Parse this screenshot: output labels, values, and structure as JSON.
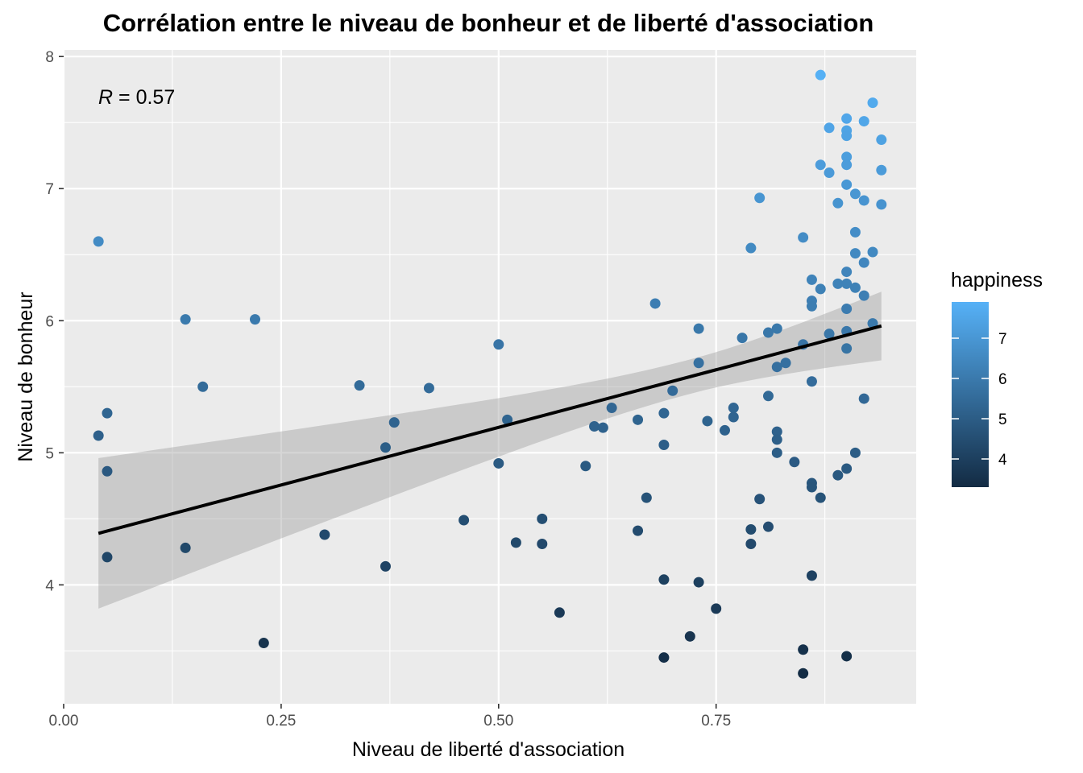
{
  "chart_data": {
    "type": "scatter",
    "title": "Corrélation entre le niveau de bonheur et de liberté d'association",
    "xlabel": "Niveau de liberté d'association",
    "ylabel": "Niveau de bonheur",
    "xlim": [
      0.0,
      0.98
    ],
    "ylim": [
      3.1,
      8.05
    ],
    "x_ticks": [
      0.0,
      0.25,
      0.5,
      0.75
    ],
    "x_tick_labels": [
      "0.00",
      "0.25",
      "0.50",
      "0.75"
    ],
    "y_ticks": [
      4,
      5,
      6,
      7,
      8
    ],
    "y_tick_labels": [
      "4",
      "5",
      "6",
      "7",
      "8"
    ],
    "grid": true,
    "annotation": {
      "r_label": "R",
      "r_eq": " = ",
      "r_value": "0.57"
    },
    "regression": {
      "x_start": 0.04,
      "x_end": 0.94,
      "y_start": 4.39,
      "y_end": 5.96,
      "ci_lower": [
        4.39,
        3.82,
        5.96,
        5.7
      ],
      "ci_upper": [
        4.39,
        4.96,
        5.96,
        6.22
      ]
    },
    "legend": {
      "title": "happiness",
      "position": "right",
      "color_low": "#132B43",
      "color_high": "#56B1F7",
      "range": [
        3.3,
        7.9
      ],
      "ticks": [
        4,
        5,
        6,
        7
      ],
      "tick_labels": [
        "4",
        "5",
        "6",
        "7"
      ]
    },
    "points": [
      {
        "x": 0.04,
        "y": 6.6
      },
      {
        "x": 0.04,
        "y": 5.13
      },
      {
        "x": 0.05,
        "y": 5.3
      },
      {
        "x": 0.05,
        "y": 4.86
      },
      {
        "x": 0.05,
        "y": 4.21
      },
      {
        "x": 0.14,
        "y": 6.01
      },
      {
        "x": 0.14,
        "y": 4.28
      },
      {
        "x": 0.16,
        "y": 5.5
      },
      {
        "x": 0.22,
        "y": 6.01
      },
      {
        "x": 0.23,
        "y": 3.56
      },
      {
        "x": 0.3,
        "y": 4.38
      },
      {
        "x": 0.34,
        "y": 5.51
      },
      {
        "x": 0.37,
        "y": 5.04
      },
      {
        "x": 0.37,
        "y": 4.14
      },
      {
        "x": 0.38,
        "y": 5.23
      },
      {
        "x": 0.42,
        "y": 5.49
      },
      {
        "x": 0.46,
        "y": 4.49
      },
      {
        "x": 0.5,
        "y": 5.82
      },
      {
        "x": 0.5,
        "y": 4.92
      },
      {
        "x": 0.51,
        "y": 5.25
      },
      {
        "x": 0.52,
        "y": 4.32
      },
      {
        "x": 0.55,
        "y": 4.5
      },
      {
        "x": 0.55,
        "y": 4.31
      },
      {
        "x": 0.57,
        "y": 3.79
      },
      {
        "x": 0.6,
        "y": 4.9
      },
      {
        "x": 0.61,
        "y": 5.2
      },
      {
        "x": 0.62,
        "y": 5.19
      },
      {
        "x": 0.63,
        "y": 5.34
      },
      {
        "x": 0.66,
        "y": 5.25
      },
      {
        "x": 0.66,
        "y": 4.41
      },
      {
        "x": 0.67,
        "y": 4.66
      },
      {
        "x": 0.68,
        "y": 6.13
      },
      {
        "x": 0.69,
        "y": 5.3
      },
      {
        "x": 0.69,
        "y": 5.06
      },
      {
        "x": 0.69,
        "y": 4.04
      },
      {
        "x": 0.69,
        "y": 3.45
      },
      {
        "x": 0.7,
        "y": 5.47
      },
      {
        "x": 0.72,
        "y": 3.61
      },
      {
        "x": 0.73,
        "y": 5.94
      },
      {
        "x": 0.73,
        "y": 5.68
      },
      {
        "x": 0.73,
        "y": 4.02
      },
      {
        "x": 0.74,
        "y": 5.24
      },
      {
        "x": 0.75,
        "y": 3.82
      },
      {
        "x": 0.76,
        "y": 5.17
      },
      {
        "x": 0.77,
        "y": 5.34
      },
      {
        "x": 0.77,
        "y": 5.27
      },
      {
        "x": 0.78,
        "y": 5.87
      },
      {
        "x": 0.79,
        "y": 6.55
      },
      {
        "x": 0.79,
        "y": 4.42
      },
      {
        "x": 0.79,
        "y": 4.31
      },
      {
        "x": 0.8,
        "y": 6.93
      },
      {
        "x": 0.8,
        "y": 4.65
      },
      {
        "x": 0.81,
        "y": 5.91
      },
      {
        "x": 0.81,
        "y": 5.43
      },
      {
        "x": 0.81,
        "y": 4.44
      },
      {
        "x": 0.82,
        "y": 5.94
      },
      {
        "x": 0.82,
        "y": 5.65
      },
      {
        "x": 0.82,
        "y": 5.16
      },
      {
        "x": 0.82,
        "y": 5.1
      },
      {
        "x": 0.82,
        "y": 5.0
      },
      {
        "x": 0.83,
        "y": 5.68
      },
      {
        "x": 0.84,
        "y": 4.93
      },
      {
        "x": 0.85,
        "y": 6.63
      },
      {
        "x": 0.85,
        "y": 5.82
      },
      {
        "x": 0.85,
        "y": 3.51
      },
      {
        "x": 0.85,
        "y": 3.33
      },
      {
        "x": 0.86,
        "y": 6.31
      },
      {
        "x": 0.86,
        "y": 6.15
      },
      {
        "x": 0.86,
        "y": 6.11
      },
      {
        "x": 0.86,
        "y": 5.54
      },
      {
        "x": 0.86,
        "y": 4.77
      },
      {
        "x": 0.86,
        "y": 4.74
      },
      {
        "x": 0.86,
        "y": 4.07
      },
      {
        "x": 0.87,
        "y": 7.86
      },
      {
        "x": 0.87,
        "y": 7.18
      },
      {
        "x": 0.87,
        "y": 6.24
      },
      {
        "x": 0.87,
        "y": 4.66
      },
      {
        "x": 0.88,
        "y": 7.46
      },
      {
        "x": 0.88,
        "y": 7.12
      },
      {
        "x": 0.88,
        "y": 5.9
      },
      {
        "x": 0.89,
        "y": 6.89
      },
      {
        "x": 0.89,
        "y": 6.28
      },
      {
        "x": 0.89,
        "y": 4.83
      },
      {
        "x": 0.9,
        "y": 7.53
      },
      {
        "x": 0.9,
        "y": 7.44
      },
      {
        "x": 0.9,
        "y": 7.4
      },
      {
        "x": 0.9,
        "y": 7.24
      },
      {
        "x": 0.9,
        "y": 7.18
      },
      {
        "x": 0.9,
        "y": 7.03
      },
      {
        "x": 0.9,
        "y": 6.37
      },
      {
        "x": 0.9,
        "y": 6.28
      },
      {
        "x": 0.9,
        "y": 6.09
      },
      {
        "x": 0.9,
        "y": 5.92
      },
      {
        "x": 0.9,
        "y": 5.79
      },
      {
        "x": 0.9,
        "y": 4.88
      },
      {
        "x": 0.9,
        "y": 3.46
      },
      {
        "x": 0.91,
        "y": 6.96
      },
      {
        "x": 0.91,
        "y": 6.67
      },
      {
        "x": 0.91,
        "y": 6.51
      },
      {
        "x": 0.91,
        "y": 6.25
      },
      {
        "x": 0.91,
        "y": 5.0
      },
      {
        "x": 0.92,
        "y": 7.51
      },
      {
        "x": 0.92,
        "y": 6.91
      },
      {
        "x": 0.92,
        "y": 6.44
      },
      {
        "x": 0.92,
        "y": 6.19
      },
      {
        "x": 0.92,
        "y": 5.41
      },
      {
        "x": 0.93,
        "y": 7.65
      },
      {
        "x": 0.93,
        "y": 6.52
      },
      {
        "x": 0.93,
        "y": 5.98
      },
      {
        "x": 0.94,
        "y": 7.37
      },
      {
        "x": 0.94,
        "y": 7.14
      },
      {
        "x": 0.94,
        "y": 6.88
      }
    ]
  }
}
